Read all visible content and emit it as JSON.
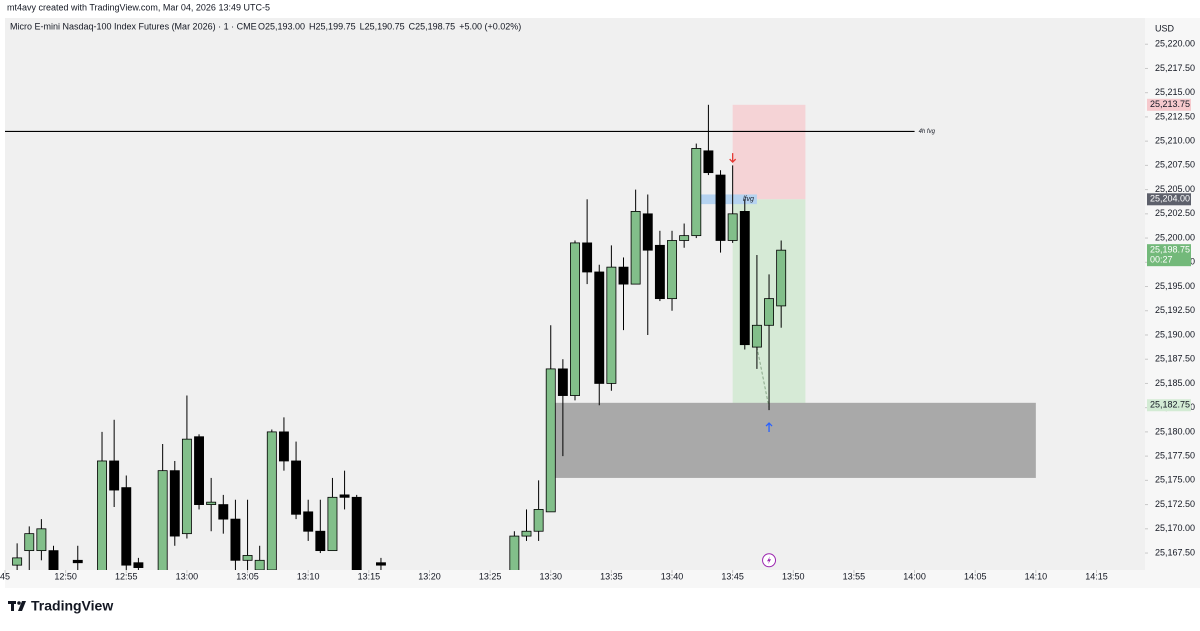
{
  "header": {
    "credit": "mt4avy created with TradingView.com, Mar 04, 2026 13:49 UTC-5"
  },
  "chart_data": {
    "type": "candlestick",
    "legend": {
      "symbol": "Micro E-mini Nasdaq-100 Index Futures (Mar 2026) · 1 · CME",
      "ohlc": [
        "O25,193.00",
        "H25,199.75",
        "L25,190.75",
        "C25,198.75",
        "+5.00 (+0.02%)"
      ]
    },
    "currency": "USD",
    "x": [
      "12:46",
      "12:47",
      "12:48",
      "12:49",
      "12:51",
      "12:53",
      "12:54",
      "12:55",
      "12:56",
      "12:58",
      "12:59",
      "13:00",
      "13:01",
      "13:02",
      "13:03",
      "13:04",
      "13:05",
      "13:06",
      "13:07",
      "13:08",
      "13:09",
      "13:10",
      "13:11",
      "13:12",
      "13:13",
      "13:14",
      "13:16",
      "13:27",
      "13:28",
      "13:29",
      "13:30",
      "13:31",
      "13:32",
      "13:33",
      "13:34",
      "13:35",
      "13:36",
      "13:37",
      "13:38",
      "13:39",
      "13:40",
      "13:41",
      "13:42",
      "13:43",
      "13:44",
      "13:45",
      "13:46",
      "13:47",
      "13:48",
      "13:49"
    ],
    "open": [
      25166.25,
      25167.75,
      25167.75,
      25167.75,
      25166.75,
      25165.5,
      25177,
      25174.25,
      25166.5,
      25165.5,
      25176,
      25169.5,
      25179.5,
      25172.5,
      25172.5,
      25171,
      25166.75,
      25165.75,
      25165.75,
      25180,
      25177,
      25171.75,
      25169.75,
      25167.75,
      25173.5,
      25173.25,
      25166.5,
      25165.5,
      25169.25,
      25169.75,
      25171.75,
      25186.5,
      25183.75,
      25199.5,
      25196.5,
      25185,
      25197,
      25195.25,
      25202.5,
      25199.25,
      25193.75,
      25199.75,
      25200.25,
      25209,
      25206.5,
      25199.75,
      25202.75,
      25188.75,
      25191,
      25193
    ],
    "high": [
      25168.5,
      25170.25,
      25171,
      25168.25,
      25168.25,
      25180,
      25181.25,
      25175.5,
      25167,
      25178.75,
      25177,
      25183.75,
      25179.75,
      25175.25,
      25173.5,
      25173,
      25173,
      25168.25,
      25180.25,
      25181.5,
      25179,
      25173,
      25173,
      25175.25,
      25176,
      25173.5,
      25167,
      25169.75,
      25172,
      25175,
      25191,
      25187.5,
      25199.75,
      25204,
      25197.25,
      25199.25,
      25198,
      25205,
      25204.5,
      25200.75,
      25200.75,
      25201.5,
      25209.75,
      25213.75,
      25207,
      25207.5,
      25204,
      25198.25,
      25196.25,
      25199.75
    ],
    "low": [
      25165,
      25165,
      25166.75,
      25165,
      25165,
      25165,
      25172.25,
      25165,
      25165,
      25165,
      25168.25,
      25169,
      25172,
      25169.75,
      25169.5,
      25165,
      25165,
      25165,
      25165,
      25176,
      25171,
      25168.75,
      25167.5,
      25167.75,
      25172,
      25165,
      25165,
      25165,
      25168.75,
      25168.75,
      25171.75,
      25177.5,
      25183.25,
      25195.25,
      25182.75,
      25184.25,
      25190.5,
      25195.25,
      25190,
      25193.5,
      25192.5,
      25199,
      25200,
      25206.5,
      25198.5,
      25199.5,
      25188.5,
      25186.5,
      25182.25,
      25190.75
    ],
    "close": [
      25167,
      25169.5,
      25170,
      25165.75,
      25166.5,
      25177,
      25174,
      25166.25,
      25166,
      25176,
      25169.25,
      25179.25,
      25172.5,
      25172.75,
      25171,
      25166.75,
      25167.25,
      25166.75,
      25180,
      25177,
      25171.5,
      25169.75,
      25167.75,
      25173.25,
      25173.25,
      25165.5,
      25166.25,
      25169.25,
      25169.75,
      25172,
      25186.5,
      25183.75,
      25199.5,
      25196.5,
      25185,
      25197,
      25195.25,
      25202.75,
      25198.75,
      25193.75,
      25199.75,
      25200.25,
      25209.25,
      25206.75,
      25199.75,
      25202.5,
      25189,
      25191,
      25193.75,
      25198.75
    ],
    "up_color": "#82bf8a",
    "down_color": "#000000",
    "xlim": [
      "12:45",
      "14:19"
    ],
    "xticks": [
      {
        "value": "12:45",
        "label": "45"
      },
      "12:50",
      "12:55",
      "13:00",
      "13:05",
      "13:10",
      "13:15",
      "13:20",
      "13:25",
      "13:30",
      "13:35",
      "13:40",
      "13:45",
      "13:50",
      "13:55",
      "14:00",
      "14:05",
      "14:10",
      "14:15"
    ],
    "ylim": [
      25165.75,
      25222.5
    ],
    "yticks": [
      {
        "value": 25167.5,
        "label": "25,167.50"
      },
      {
        "value": 25170,
        "label": "25,170.00"
      },
      {
        "value": 25172.5,
        "label": "25,172.50"
      },
      {
        "value": 25175,
        "label": "25,175.00"
      },
      {
        "value": 25177.5,
        "label": "25,177.50"
      },
      {
        "value": 25180,
        "label": "25,180.00"
      },
      {
        "value": 25182.5,
        "label": "25,182.50"
      },
      {
        "value": 25185,
        "label": "25,185.00"
      },
      {
        "value": 25187.5,
        "label": "25,187.50"
      },
      {
        "value": 25190,
        "label": "25,190.00"
      },
      {
        "value": 25192.5,
        "label": "25,192.50"
      },
      {
        "value": 25195,
        "label": "25,195.00"
      },
      {
        "value": 25197.5,
        "label": "25,197.50"
      },
      {
        "value": 25200,
        "label": "25,200.00"
      },
      {
        "value": 25202.5,
        "label": "25,202.50"
      },
      {
        "value": 25205,
        "label": "25,205.00"
      },
      {
        "value": 25207.5,
        "label": "25,207.50"
      },
      {
        "value": 25210,
        "label": "25,210.00"
      },
      {
        "value": 25212.5,
        "label": "25,212.50"
      },
      {
        "value": 25215,
        "label": "25,215.00"
      },
      {
        "value": 25217.5,
        "label": "25,217.50"
      },
      {
        "value": 25220,
        "label": "25,220.00"
      }
    ],
    "price_labels": [
      {
        "value": 25213.75,
        "label": "25,213.75",
        "color": "#f6c9cd",
        "text_color": "#131722"
      },
      {
        "value": 25204,
        "label": "25,204.00",
        "color": "#5d606b",
        "text_color": "#ffffff"
      },
      {
        "value": 25198.75,
        "label": "25,198.75",
        "sublabel": "00:27",
        "color": "#73b97a",
        "text_color": "#ffffff"
      },
      {
        "value": 25182.75,
        "label": "25,182.75",
        "color": "#d3ebd4",
        "text_color": "#131722"
      }
    ],
    "drawings": {
      "hline": {
        "price": 25211,
        "end": "14:00",
        "label": "4h fvg",
        "color": "#000000"
      },
      "boxes": [
        {
          "start": "13:45",
          "end": "13:51",
          "top": 25213.75,
          "bottom": 25204,
          "color": "#f5d3d6"
        },
        {
          "start": "13:45",
          "end": "13:51",
          "top": 25204,
          "bottom": 25182.75,
          "color": "#d6ead6"
        },
        {
          "start": "13:30",
          "end": "14:10",
          "top": 25183,
          "bottom": 25175.25,
          "color": "#a9a9a9"
        },
        {
          "start": "13:42",
          "end": "13:47",
          "top": 25204.5,
          "bottom": 25203.5,
          "color": "#b5d3f0",
          "label": "lfvg"
        }
      ],
      "path": {
        "x": [
          "13:47",
          "13:48"
        ],
        "y": [
          25188.75,
          25182.5
        ],
        "color": "#8aa88a"
      },
      "arrows": [
        {
          "x": "13:45",
          "price": 25208.25,
          "direction": "down",
          "color": "#e53935"
        },
        {
          "x": "13:48",
          "price": 25180.5,
          "direction": "up",
          "color": "#2962ff"
        }
      ],
      "event": {
        "x": "13:48",
        "price": 25166.75,
        "color": "#9c27b0"
      }
    }
  },
  "footer": {
    "brand": "TradingView"
  }
}
